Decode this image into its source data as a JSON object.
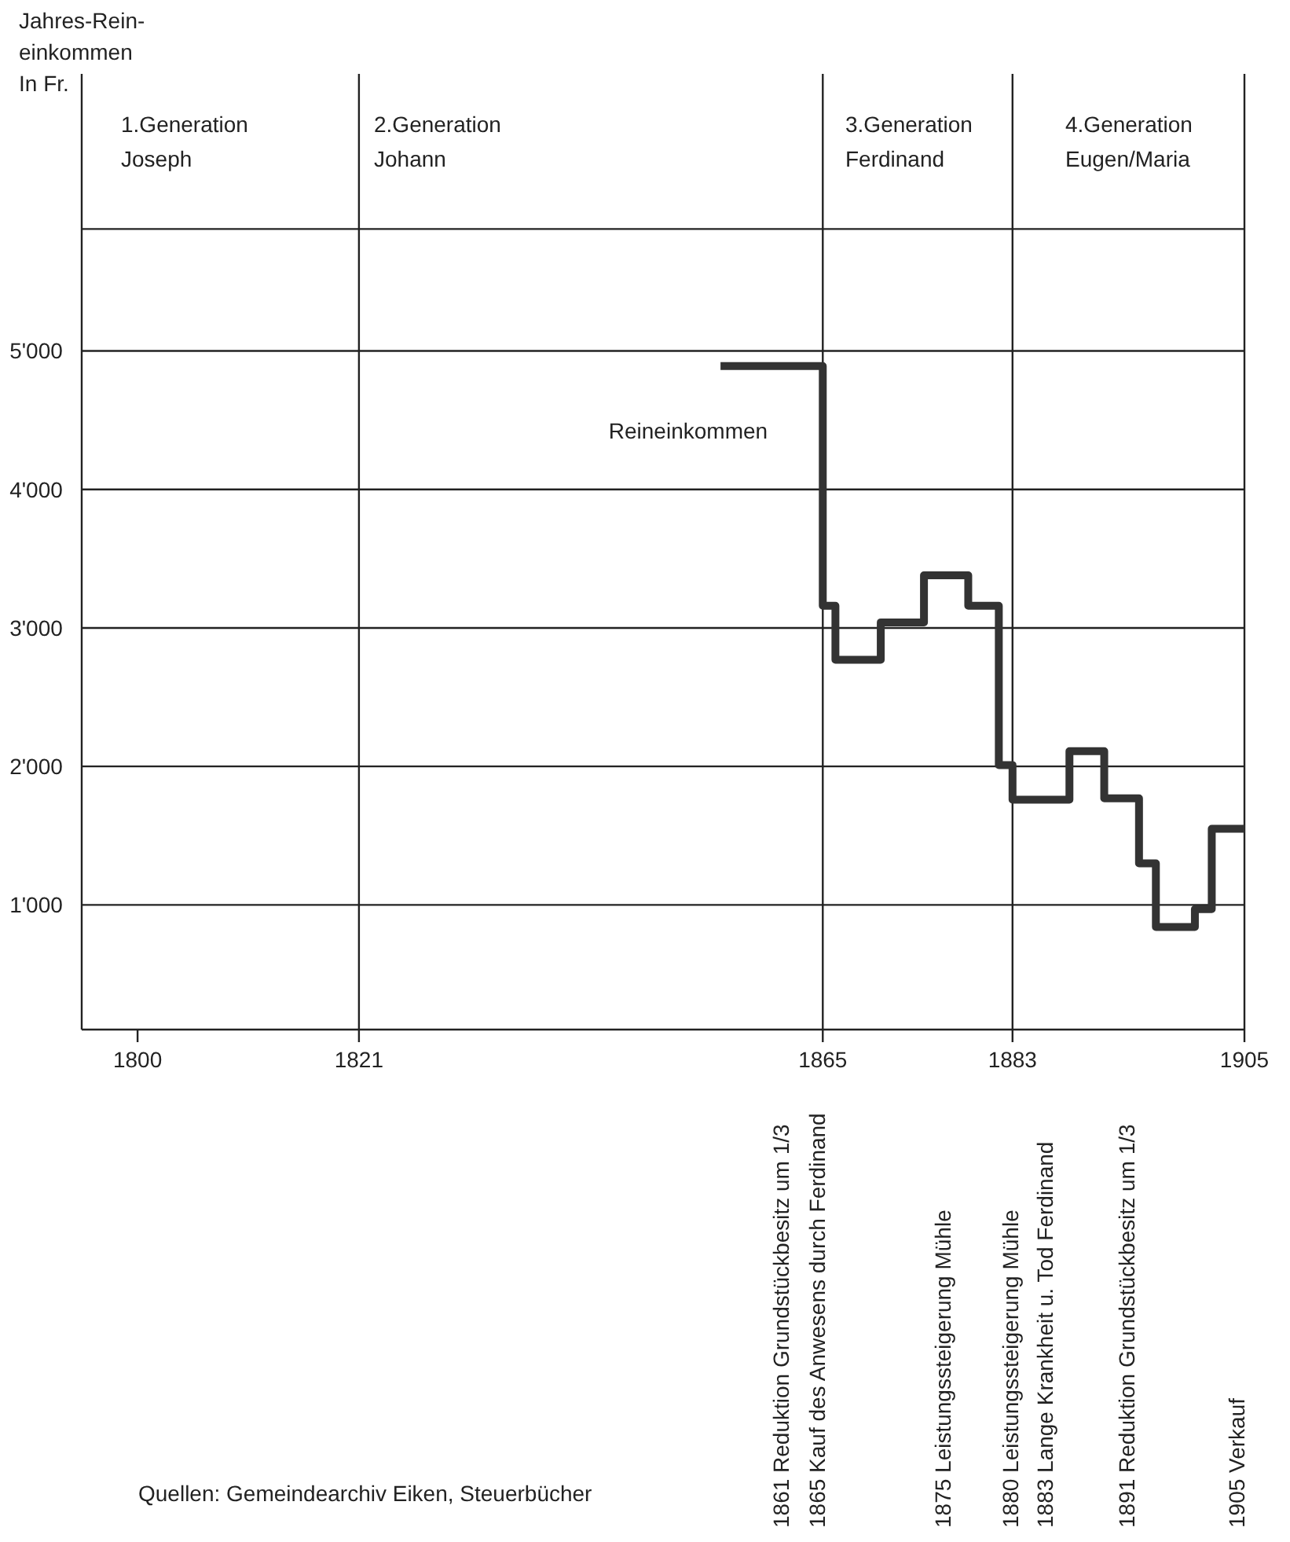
{
  "chart_data": {
    "type": "step",
    "ylabel": "Jahres-Rein-\neinkommen\nIn Fr.",
    "x": [
      1855.3,
      1865,
      1866.2,
      1870.5,
      1874.6,
      1878.8,
      1881.7,
      1883,
      1888.4,
      1891.7,
      1895,
      1896.6,
      1900.3,
      1901.9,
      1905
    ],
    "series": [
      {
        "name": "Reineinkommen",
        "color": "#333333",
        "values": [
          4890,
          3160,
          2770,
          3040,
          3380,
          3160,
          2010,
          1760,
          2110,
          1770,
          1300,
          840,
          970,
          1550,
          1550
        ]
      }
    ],
    "xlim": [
      1794.7,
      1905
    ],
    "xticks": [
      1800,
      1821,
      1865,
      1883,
      1905
    ],
    "ylim": [
      100,
      7000
    ],
    "yticks": [
      {
        "value": 1000,
        "label": "1'000"
      },
      {
        "value": 2000,
        "label": "2'000"
      },
      {
        "value": 3000,
        "label": "3'000"
      },
      {
        "value": 4000,
        "label": "4'000"
      },
      {
        "value": 5000,
        "label": "5'000"
      },
      {
        "value": 5880,
        "label": null
      }
    ],
    "grid": "y",
    "marker": "none",
    "line_style": "solid",
    "ref_lines": [
      {
        "axis": "x",
        "value": 1821
      },
      {
        "axis": "x",
        "value": 1865
      },
      {
        "axis": "x",
        "value": 1883
      }
    ],
    "annotations": [
      "1.Generation\nJoseph",
      "2.Generation\nJohann",
      "3.Generation\nFerdinand",
      "4.Generation\nEugen/Maria",
      "1861 Reduktion Grundstückbesitz um 1/3",
      "1865 Kauf des Anwesens durch Ferdinand",
      "1875 Leistungssteigerung Mühle",
      "1880 Leistungssteigerung Mühle",
      "1883 Lange Krankheit u. Tod Ferdinand",
      "1891 Reduktion Grundstückbesitz um 1/3",
      "1905 Verkauf",
      "Quellen: Gemeindearchiv Eiken, Steuerbücher"
    ]
  }
}
